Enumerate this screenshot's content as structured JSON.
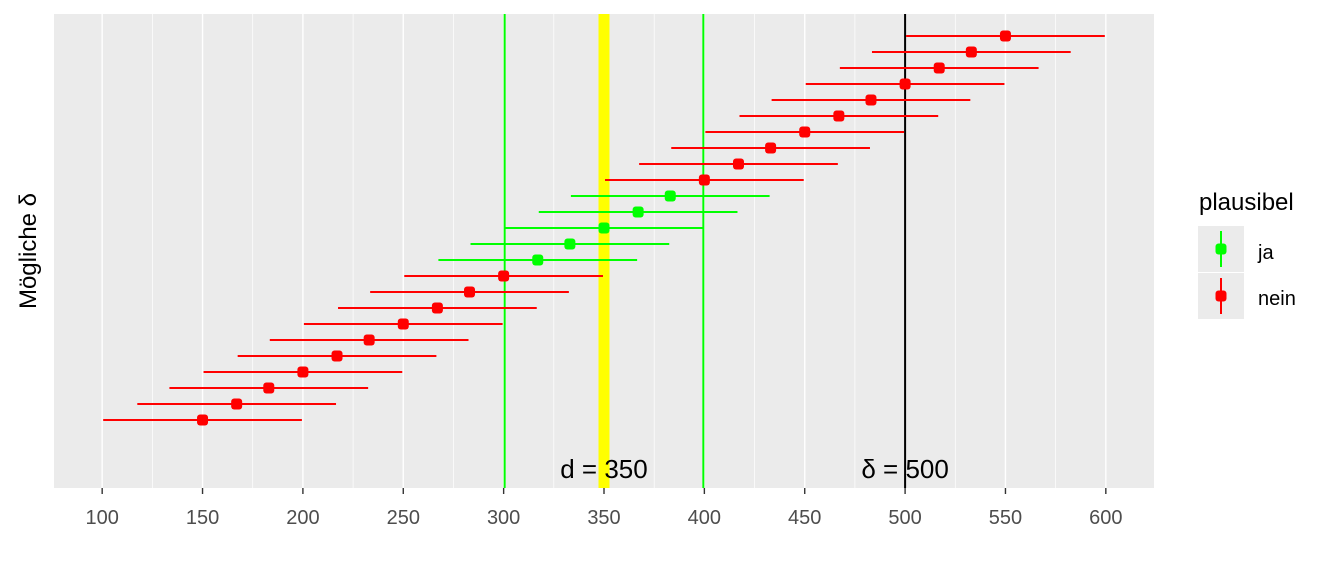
{
  "chart_data": {
    "type": "errorbar",
    "ylabel": "Mögliche δ",
    "xlim": [
      76,
      624
    ],
    "x_ticks": [
      100,
      150,
      200,
      250,
      300,
      350,
      400,
      450,
      500,
      550,
      600
    ],
    "grid": true,
    "legend_position": "right",
    "legend_title": "plausibel",
    "legend_entries": [
      {
        "label": "ja",
        "color": "#00ff00"
      },
      {
        "label": "nein",
        "color": "#ff0000"
      }
    ],
    "half_width": 49.5,
    "points": [
      {
        "center": 150,
        "plausibel": "nein"
      },
      {
        "center": 167,
        "plausibel": "nein"
      },
      {
        "center": 183,
        "plausibel": "nein"
      },
      {
        "center": 200,
        "plausibel": "nein"
      },
      {
        "center": 217,
        "plausibel": "nein"
      },
      {
        "center": 233,
        "plausibel": "nein"
      },
      {
        "center": 250,
        "plausibel": "nein"
      },
      {
        "center": 267,
        "plausibel": "nein"
      },
      {
        "center": 283,
        "plausibel": "nein"
      },
      {
        "center": 300,
        "plausibel": "nein"
      },
      {
        "center": 317,
        "plausibel": "ja"
      },
      {
        "center": 333,
        "plausibel": "ja"
      },
      {
        "center": 350,
        "plausibel": "ja"
      },
      {
        "center": 367,
        "plausibel": "ja"
      },
      {
        "center": 383,
        "plausibel": "ja"
      },
      {
        "center": 400,
        "plausibel": "nein"
      },
      {
        "center": 417,
        "plausibel": "nein"
      },
      {
        "center": 433,
        "plausibel": "nein"
      },
      {
        "center": 450,
        "plausibel": "nein"
      },
      {
        "center": 467,
        "plausibel": "nein"
      },
      {
        "center": 483,
        "plausibel": "nein"
      },
      {
        "center": 500,
        "plausibel": "nein"
      },
      {
        "center": 517,
        "plausibel": "nein"
      },
      {
        "center": 533,
        "plausibel": "nein"
      },
      {
        "center": 550,
        "plausibel": "nein"
      }
    ],
    "reference_lines": [
      {
        "x": 300.5,
        "color": "#00ff00",
        "kind": "bound-lower"
      },
      {
        "x": 399.5,
        "color": "#00ff00",
        "kind": "bound-upper"
      },
      {
        "x": 350,
        "color": "#ffff00",
        "kind": "observed-d"
      },
      {
        "x": 500,
        "color": "#000000",
        "kind": "true-delta"
      }
    ],
    "annotations": [
      {
        "text": "d = 350",
        "x": 350
      },
      {
        "text": "δ = 500",
        "x": 500
      }
    ],
    "colors": {
      "ja": "#00ff00",
      "nein": "#ff0000",
      "panel": "#ebebeb",
      "grid": "#ffffff",
      "highlight": "#ffff00"
    }
  }
}
